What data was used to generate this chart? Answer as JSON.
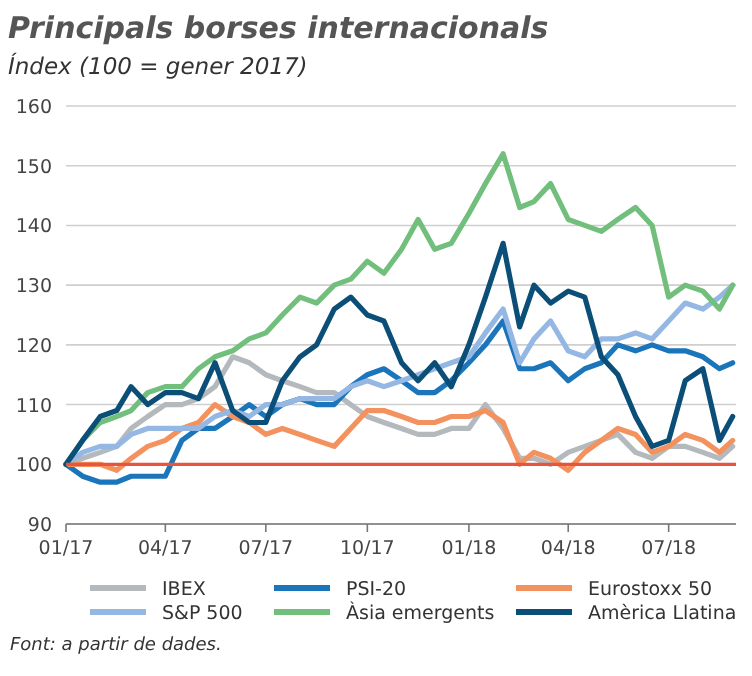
{
  "chart_data": {
    "type": "line",
    "title": "Principals borses internacionals",
    "subtitle": "Índex (100 = gener 2017)",
    "x": [
      "2017-01-01",
      "2017-01-16",
      "2017-02-01",
      "2017-02-16",
      "2017-03-01",
      "2017-03-16",
      "2017-04-01",
      "2017-04-16",
      "2017-05-01",
      "2017-05-16",
      "2017-06-01",
      "2017-06-16",
      "2017-07-01",
      "2017-07-16",
      "2017-08-01",
      "2017-08-16",
      "2017-09-01",
      "2017-09-16",
      "2017-10-01",
      "2017-10-16",
      "2017-11-01",
      "2017-11-16",
      "2017-12-01",
      "2017-12-16",
      "2018-01-01",
      "2018-01-16",
      "2018-02-01",
      "2018-02-16",
      "2018-03-01",
      "2018-03-16",
      "2018-04-01",
      "2018-04-16",
      "2018-05-01",
      "2018-05-16",
      "2018-06-01",
      "2018-06-16",
      "2018-07-01",
      "2018-07-16",
      "2018-08-01",
      "2018-08-16",
      "2018-08-28"
    ],
    "series": [
      {
        "name": "IBEX",
        "color": "#b4b9bd",
        "values": [
          100,
          101,
          102,
          103,
          106,
          108,
          110,
          110,
          111,
          113,
          118,
          117,
          115,
          114,
          113,
          112,
          112,
          110,
          108,
          107,
          106,
          105,
          105,
          106,
          106,
          110,
          106,
          101,
          101,
          100,
          102,
          103,
          104,
          105,
          102,
          101,
          103,
          103,
          102,
          101,
          103
        ]
      },
      {
        "name": "PSI-20",
        "color": "#1b75bb",
        "values": [
          100,
          98,
          97,
          97,
          98,
          98,
          98,
          104,
          106,
          106,
          108,
          110,
          108,
          110,
          111,
          110,
          110,
          113,
          115,
          116,
          114,
          112,
          112,
          114,
          117,
          120,
          124,
          116,
          116,
          117,
          114,
          116,
          117,
          120,
          119,
          120,
          119,
          119,
          118,
          116,
          117
        ]
      },
      {
        "name": "Eurostoxx 50",
        "color": "#f3925f",
        "values": [
          100,
          100,
          100,
          99,
          101,
          103,
          104,
          106,
          107,
          110,
          108,
          107,
          105,
          106,
          105,
          104,
          103,
          106,
          109,
          109,
          108,
          107,
          107,
          108,
          108,
          109,
          107,
          100,
          102,
          101,
          99,
          102,
          104,
          106,
          105,
          102,
          103,
          105,
          104,
          102,
          104
        ]
      },
      {
        "name": "S&P 500",
        "color": "#94b8e3",
        "values": [
          100,
          102,
          103,
          103,
          105,
          106,
          106,
          106,
          106,
          108,
          109,
          108,
          110,
          110,
          111,
          111,
          111,
          113,
          114,
          113,
          114,
          115,
          116,
          117,
          118,
          122,
          126,
          117,
          121,
          124,
          119,
          118,
          121,
          121,
          122,
          121,
          124,
          127,
          126,
          128,
          130
        ]
      },
      {
        "name": "Àsia emergents",
        "color": "#72bf7d",
        "values": [
          100,
          104,
          107,
          108,
          109,
          112,
          113,
          113,
          116,
          118,
          119,
          121,
          122,
          125,
          128,
          127,
          130,
          131,
          134,
          132,
          136,
          141,
          136,
          137,
          142,
          147,
          152,
          143,
          144,
          147,
          141,
          140,
          139,
          141,
          143,
          140,
          128,
          130,
          129,
          126,
          130
        ]
      },
      {
        "name": "Amèrica Llatina",
        "color": "#0b4f78",
        "values": [
          100,
          104,
          108,
          109,
          113,
          110,
          112,
          112,
          111,
          117,
          109,
          107,
          107,
          114,
          118,
          120,
          126,
          128,
          125,
          124,
          117,
          114,
          117,
          113,
          120,
          128,
          137,
          123,
          130,
          127,
          129,
          128,
          118,
          115,
          108,
          103,
          104,
          114,
          116,
          104,
          108
        ]
      }
    ],
    "xlim": [
      "2017-01-01",
      "2018-08-31"
    ],
    "xticks": [
      {
        "value": "2017-01-01",
        "label": "01/17"
      },
      {
        "value": "2017-04-01",
        "label": "04/17"
      },
      {
        "value": "2017-07-01",
        "label": "07/17"
      },
      {
        "value": "2017-10-01",
        "label": "10/17"
      },
      {
        "value": "2018-01-01",
        "label": "01/18"
      },
      {
        "value": "2018-04-01",
        "label": "04/18"
      },
      {
        "value": "2018-07-01",
        "label": "07/18"
      }
    ],
    "ylim": [
      90,
      160
    ],
    "yticks": [
      90,
      100,
      110,
      120,
      130,
      140,
      150,
      160
    ],
    "ref_lines": [
      {
        "axis": "y",
        "value": 100,
        "color": "#e8553e"
      }
    ],
    "grid": "y",
    "legend": "bottom",
    "annotations": [
      "Font: a partir de dades."
    ]
  }
}
